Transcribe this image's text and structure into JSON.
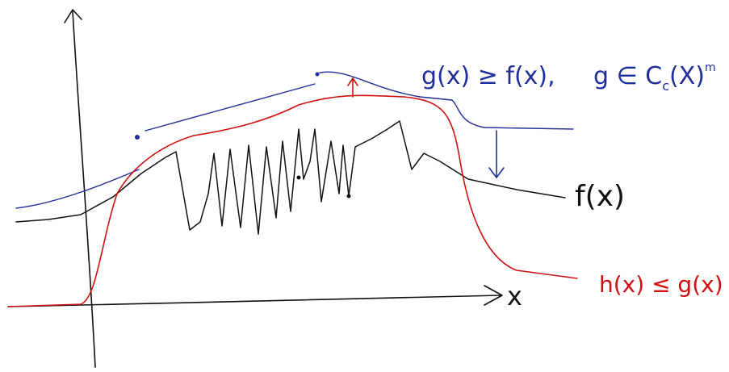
{
  "labels": {
    "g_condition": "g(x) ≥ f(x),",
    "g_membership": {
      "base": "g ∈ C",
      "sub": "c",
      "rest": "(X)",
      "sup": "m"
    },
    "f_label": "f(x)",
    "h_label": "h(x) ≤ g(x)",
    "x_axis": "x"
  }
}
